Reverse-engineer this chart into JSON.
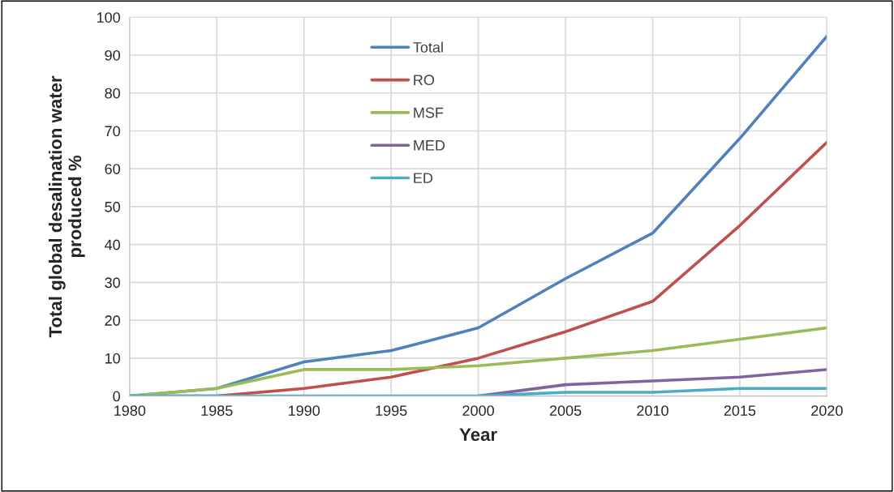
{
  "chart_data": {
    "type": "line",
    "xlabel": "Year",
    "ylabel": "Total global desalination water\nproduced %",
    "x": [
      1980,
      1985,
      1990,
      1995,
      2000,
      2005,
      2010,
      2015,
      2020
    ],
    "series": [
      {
        "name": "Total",
        "color": "#4f81bd",
        "values": [
          0,
          2,
          9,
          12,
          18,
          31,
          43,
          68,
          95
        ]
      },
      {
        "name": "RO",
        "color": "#c0504d",
        "values": [
          0,
          0,
          2,
          5,
          10,
          17,
          25,
          45,
          67
        ]
      },
      {
        "name": "MSF",
        "color": "#9bbb59",
        "values": [
          0,
          2,
          7,
          7,
          8,
          10,
          12,
          15,
          18
        ]
      },
      {
        "name": "MED",
        "color": "#8064a2",
        "values": [
          null,
          null,
          null,
          null,
          0,
          3,
          4,
          5,
          7
        ]
      },
      {
        "name": "ED",
        "color": "#4bacc6",
        "values": [
          0,
          0,
          0,
          0,
          0,
          1,
          1,
          2,
          2
        ]
      }
    ],
    "xlim": [
      1980,
      2020
    ],
    "xticks": [
      1980,
      1985,
      1990,
      1995,
      2000,
      2005,
      2010,
      2015,
      2020
    ],
    "ylim": [
      0,
      100
    ],
    "yticks": [
      0,
      10,
      20,
      30,
      40,
      50,
      60,
      70,
      80,
      90,
      100
    ],
    "grid": true,
    "legend": "top",
    "marker": "none",
    "line_style": "solid"
  }
}
